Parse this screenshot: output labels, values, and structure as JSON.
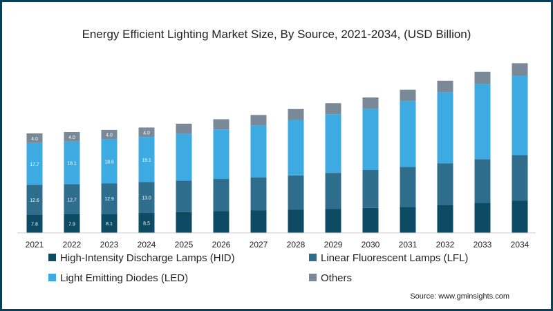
{
  "chart_data": {
    "type": "bar",
    "stacked": true,
    "title": "Energy Efficient Lighting Market Size, By Source, 2021-2034, (USD Billion)",
    "xlabel": "",
    "ylabel": "",
    "ylim": [
      0,
      75
    ],
    "grid": false,
    "legend_placement": "bottom",
    "categories": [
      "2021",
      "2022",
      "2023",
      "2024",
      "2025",
      "2026",
      "2027",
      "2028",
      "2029",
      "2030",
      "2031",
      "2032",
      "2033",
      "2034"
    ],
    "series": [
      {
        "name": "High-Intensity Discharge Lamps (HID)",
        "color": "#0d4a63",
        "values": [
          7.8,
          7.9,
          8.1,
          8.5,
          8.8,
          9.2,
          9.5,
          9.8,
          10.2,
          10.6,
          11.0,
          11.7,
          12.7,
          13.6
        ],
        "labeled_count": 4
      },
      {
        "name": "Linear Fluorescent Lamps (LFL)",
        "color": "#2f6d8c",
        "values": [
          12.6,
          12.7,
          12.9,
          13.0,
          13.3,
          13.6,
          14.0,
          14.5,
          15.2,
          16.0,
          16.9,
          17.7,
          18.5,
          19.3
        ],
        "labeled_count": 4
      },
      {
        "name": "Light Emitting Diodes (LED)",
        "color": "#3eaae2",
        "values": [
          17.7,
          18.1,
          18.6,
          19.1,
          20.0,
          21.0,
          22.0,
          23.5,
          24.8,
          26.0,
          27.9,
          30.0,
          31.7,
          33.5
        ],
        "labeled_count": 4
      },
      {
        "name": "Others",
        "color": "#7a8998",
        "values": [
          4.0,
          4.0,
          4.0,
          4.0,
          4.1,
          4.3,
          4.4,
          4.6,
          4.7,
          4.7,
          4.8,
          5.0,
          5.3,
          5.4
        ],
        "labeled_count": 4
      }
    ],
    "source": "Source: www.gminsights.com"
  }
}
